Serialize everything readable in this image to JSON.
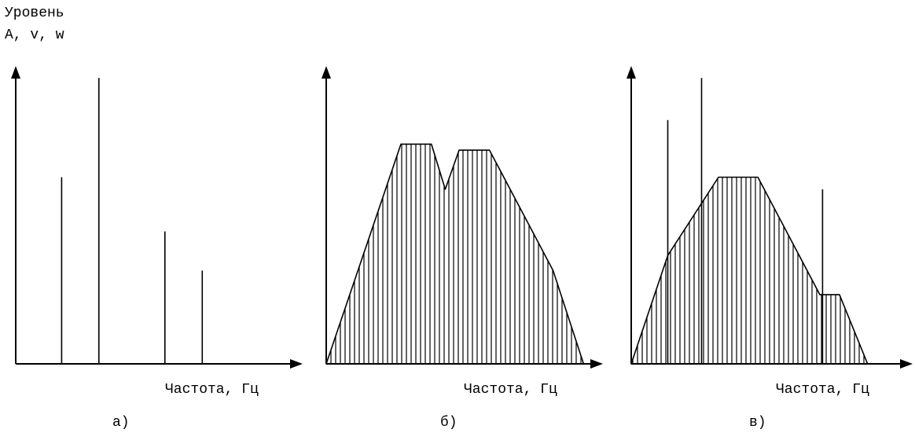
{
  "y_axis_label": [
    "Уровень",
    "A, v, w"
  ],
  "x_axis_label": "Частота, Гц",
  "panel_labels": [
    "а)",
    "б)",
    "в)"
  ],
  "colors": {
    "ink": "#000000",
    "background": "#ffffff"
  },
  "chart_data": [
    {
      "type": "line-spectrum",
      "panel": "а)",
      "description_shape": "discrete spectral lines",
      "lines": [
        {
          "x": 0.16,
          "level": 0.62
        },
        {
          "x": 0.29,
          "level": 0.95
        },
        {
          "x": 0.52,
          "level": 0.44
        },
        {
          "x": 0.65,
          "level": 0.31
        }
      ],
      "xlim": [
        0,
        1
      ],
      "ylim": [
        0,
        1
      ]
    },
    {
      "type": "area",
      "panel": "б)",
      "description_shape": "continuous spectrum, hatched",
      "envelope": [
        {
          "x": 0.0,
          "level": 0.0
        },
        {
          "x": 0.27,
          "level": 0.73
        },
        {
          "x": 0.38,
          "level": 0.73
        },
        {
          "x": 0.43,
          "level": 0.58
        },
        {
          "x": 0.48,
          "level": 0.71
        },
        {
          "x": 0.59,
          "level": 0.71
        },
        {
          "x": 0.82,
          "level": 0.31
        },
        {
          "x": 0.93,
          "level": 0.0
        }
      ],
      "xlim": [
        0,
        1
      ],
      "ylim": [
        0,
        1
      ]
    },
    {
      "type": "area",
      "panel": "в)",
      "description_shape": "mixed spectrum: hatched continuous part with discrete lines",
      "envelope": [
        {
          "x": 0.0,
          "level": 0.0
        },
        {
          "x": 0.13,
          "level": 0.36
        },
        {
          "x": 0.31,
          "level": 0.62
        },
        {
          "x": 0.45,
          "level": 0.62
        },
        {
          "x": 0.67,
          "level": 0.23
        },
        {
          "x": 0.74,
          "level": 0.23
        },
        {
          "x": 0.84,
          "level": 0.0
        }
      ],
      "lines": [
        {
          "x": 0.13,
          "level": 0.81
        },
        {
          "x": 0.25,
          "level": 0.95
        },
        {
          "x": 0.68,
          "level": 0.58
        }
      ],
      "xlim": [
        0,
        1
      ],
      "ylim": [
        0,
        1
      ]
    }
  ]
}
